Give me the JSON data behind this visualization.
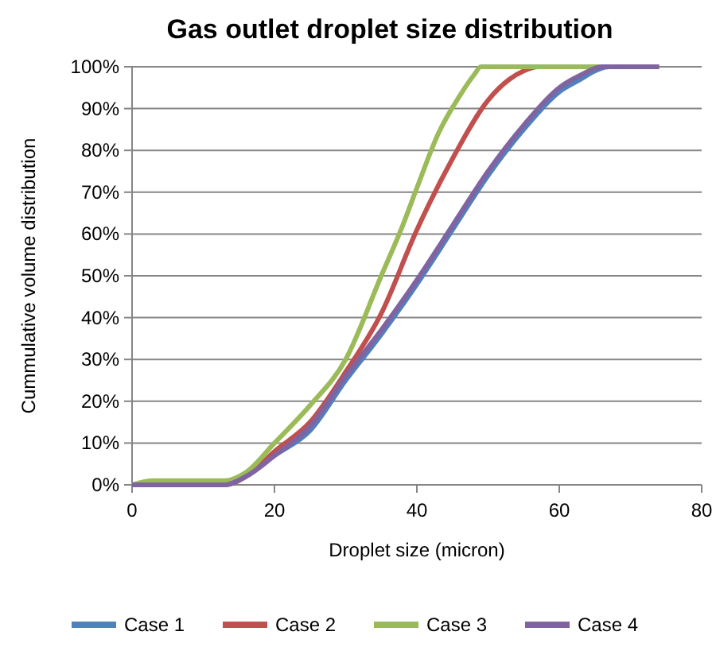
{
  "chart_data": {
    "type": "line",
    "title": "Gas outlet droplet size distribution",
    "xlabel": "Droplet size (micron)",
    "ylabel": "Cummulative volume distribution",
    "xlim": [
      0,
      80
    ],
    "xticks": [
      0,
      20,
      40,
      60,
      80
    ],
    "ylim": [
      0,
      100
    ],
    "yticks": [
      {
        "value": 0,
        "label": "0%"
      },
      {
        "value": 10,
        "label": "10%"
      },
      {
        "value": 20,
        "label": "20%"
      },
      {
        "value": 30,
        "label": "30%"
      },
      {
        "value": 40,
        "label": "40%"
      },
      {
        "value": 50,
        "label": "50%"
      },
      {
        "value": 60,
        "label": "60%"
      },
      {
        "value": 70,
        "label": "70%"
      },
      {
        "value": 80,
        "label": "80%"
      },
      {
        "value": 90,
        "label": "90%"
      },
      {
        "value": 100,
        "label": "100%"
      }
    ],
    "grid": "y",
    "legend": "bottom",
    "marker": "none",
    "line_style": "solid",
    "series": [
      {
        "name": "Case 1",
        "color": "#4f81bd",
        "x": [
          0,
          13,
          16,
          20,
          25,
          30,
          35,
          40,
          45,
          50,
          55,
          60,
          63,
          65,
          67,
          74
        ],
        "values": [
          0,
          0,
          2,
          7,
          13,
          25,
          36,
          48,
          61,
          74,
          85,
          94,
          97,
          99,
          100,
          100
        ]
      },
      {
        "name": "Case 2",
        "color": "#c0504d",
        "x": [
          0,
          13,
          16,
          20,
          25,
          30,
          35,
          40,
          45,
          50,
          53,
          55,
          57,
          74
        ],
        "values": [
          0,
          0,
          2,
          8,
          15,
          27,
          41,
          61,
          78,
          92,
          97,
          99,
          100,
          100
        ]
      },
      {
        "name": "Case 3",
        "color": "#9bbb59",
        "x": [
          0,
          3,
          13,
          16,
          20,
          25,
          30,
          35,
          38,
          40,
          43,
          46,
          48,
          49,
          74
        ],
        "values": [
          0,
          1,
          1,
          3,
          10,
          19,
          30,
          50,
          62,
          71,
          84,
          93,
          98,
          100,
          100
        ]
      },
      {
        "name": "Case 4",
        "color": "#8064a2",
        "x": [
          0,
          13,
          16,
          20,
          25,
          30,
          35,
          40,
          45,
          50,
          55,
          60,
          63,
          66,
          74
        ],
        "values": [
          0,
          0,
          2,
          7,
          14,
          26,
          37,
          49,
          62,
          75,
          86,
          95,
          98,
          100,
          100
        ]
      }
    ]
  }
}
